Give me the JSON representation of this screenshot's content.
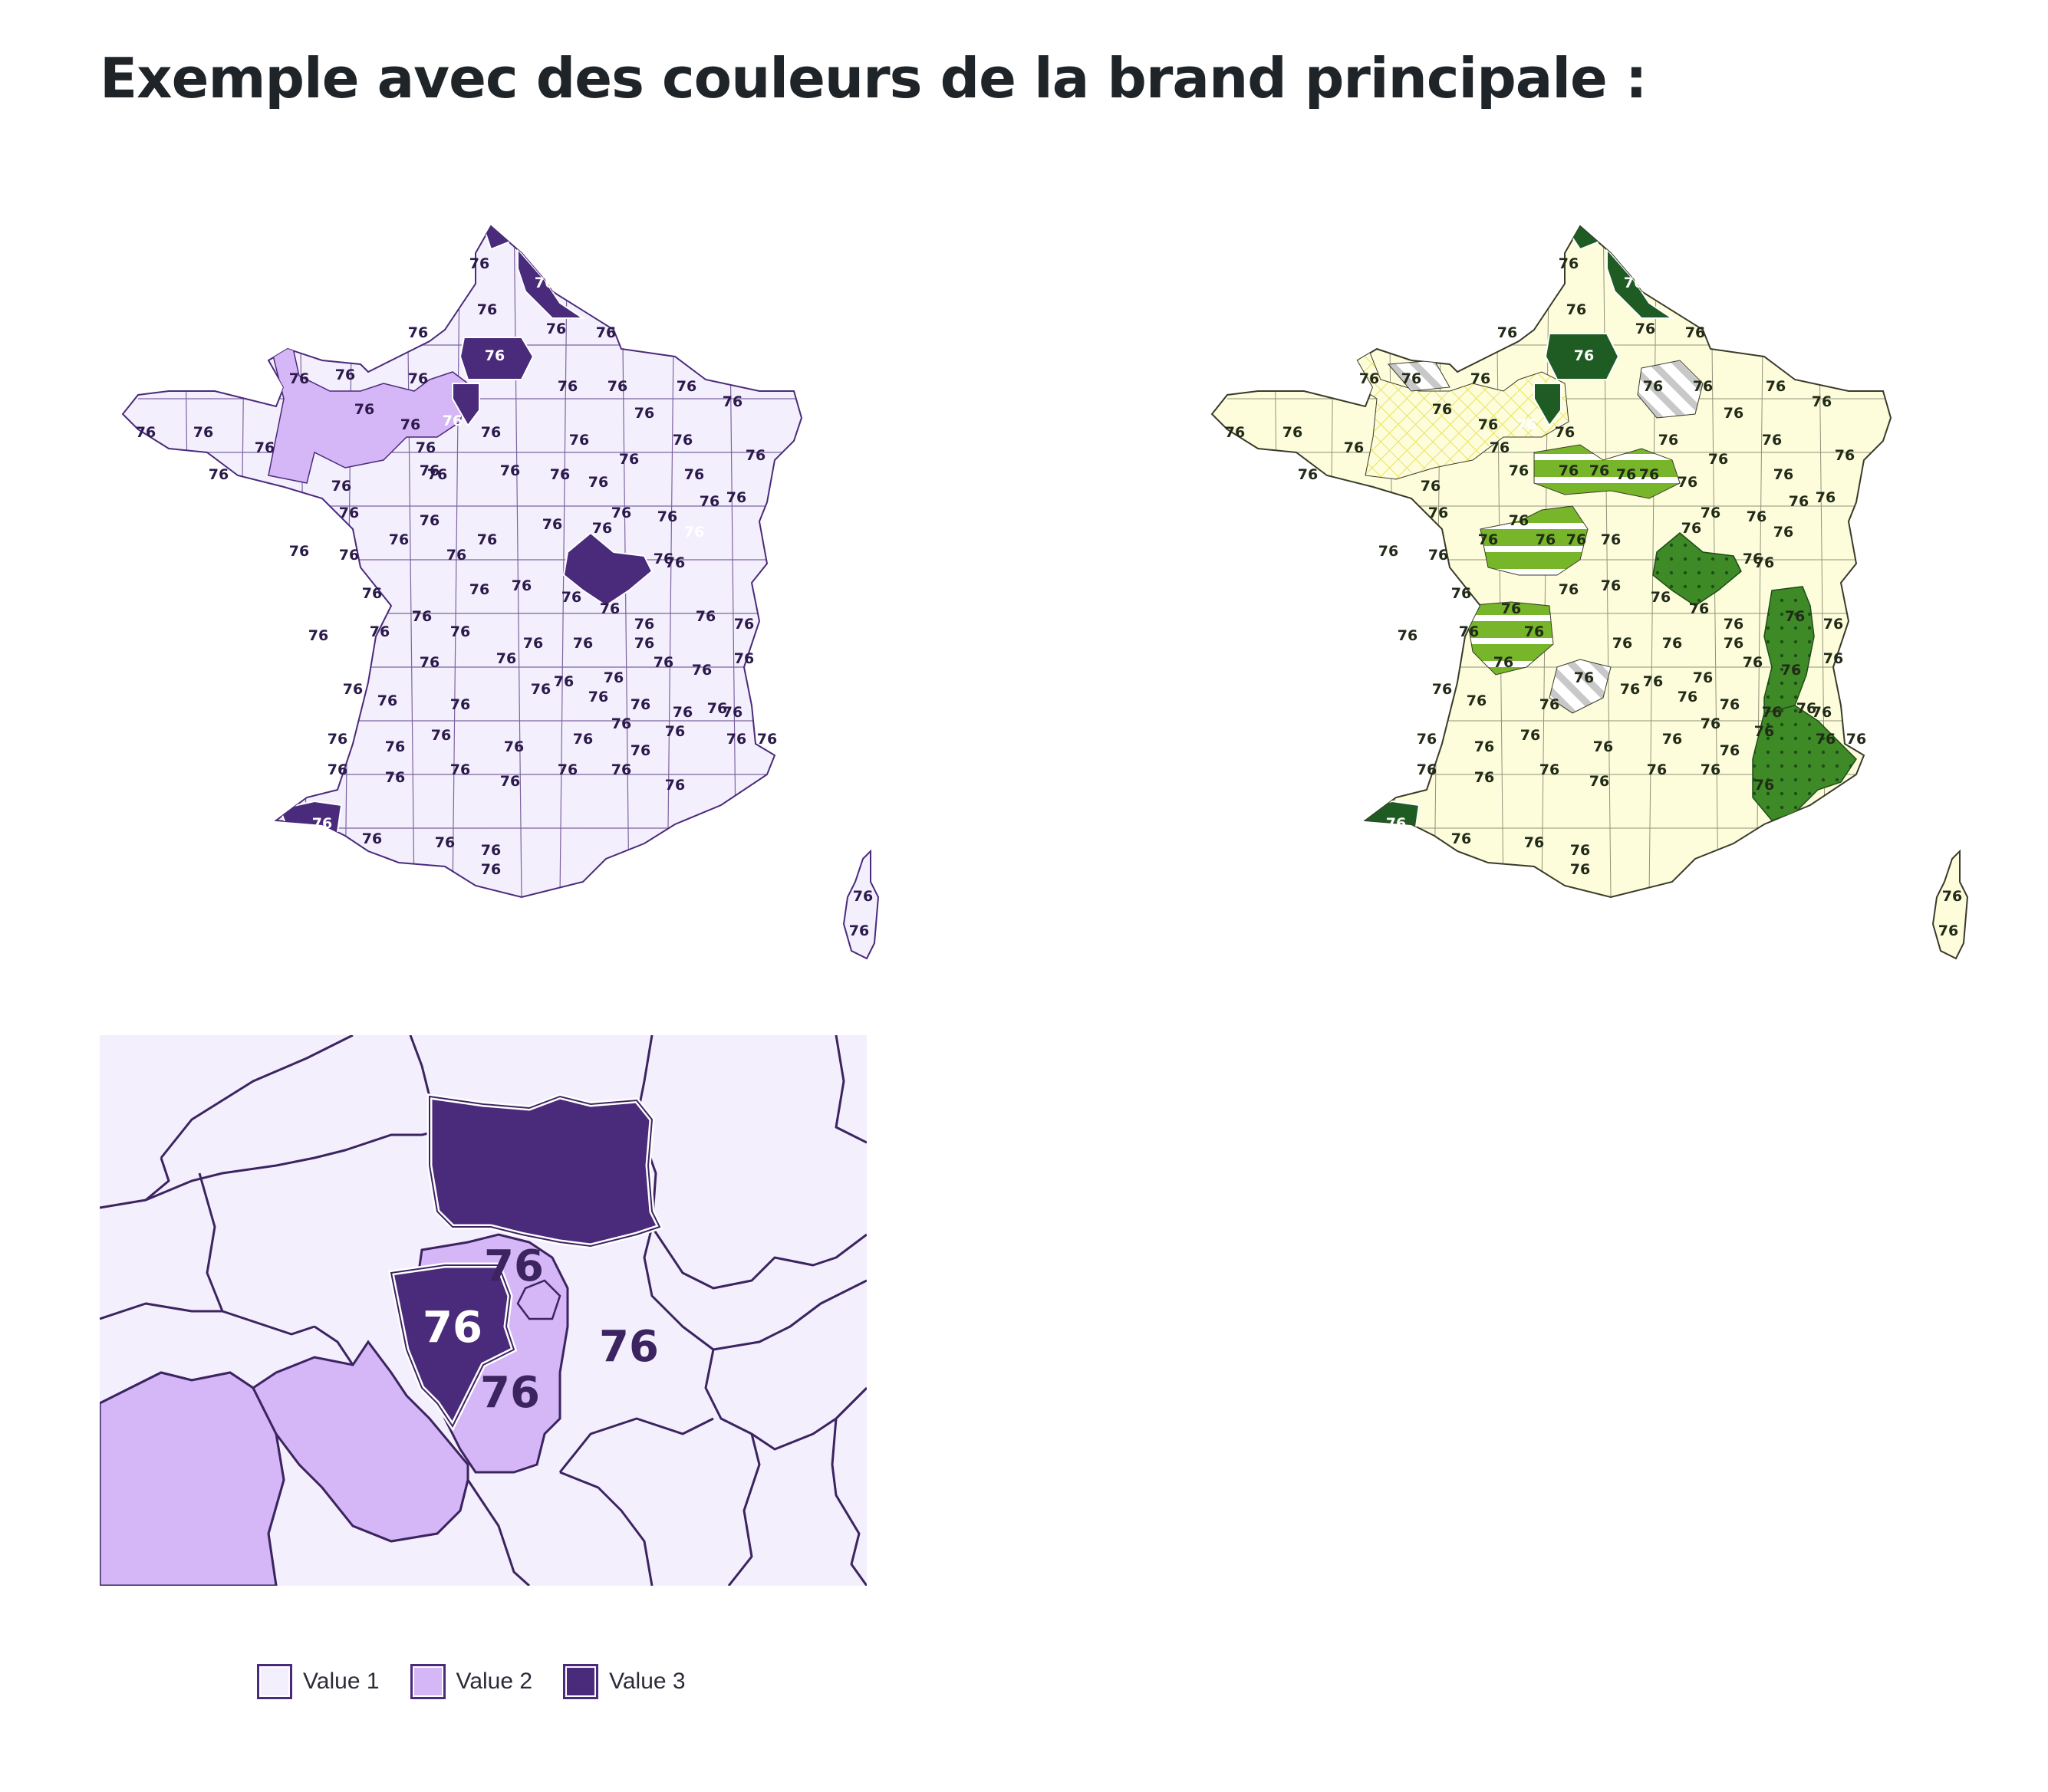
{
  "page": {
    "title": "Exemple avec des couleurs de la brand principale :"
  },
  "colors": {
    "purple_value1": "#f4effd",
    "purple_value2": "#d5b6f7",
    "purple_value3": "#4a2a7a",
    "purple_border": "#4a2a7a",
    "green_base": "#fdfddc",
    "green_light": "#77b52b",
    "green_mid": "#3e8a26",
    "green_dark": "#1f5c24",
    "yellow_hatch": "#e8e35a",
    "grey_hatch": "#c8c8c8"
  },
  "maps": {
    "purple": {
      "department_label": "76"
    },
    "green": {
      "department_label": "76"
    },
    "zoom": {
      "department_label": "76"
    }
  },
  "legend": {
    "items": [
      {
        "label": "Value 1",
        "color": "#f4effd"
      },
      {
        "label": "Value 2",
        "color": "#d5b6f7"
      },
      {
        "label": "Value 3",
        "color": "#4a2a7a"
      }
    ]
  }
}
